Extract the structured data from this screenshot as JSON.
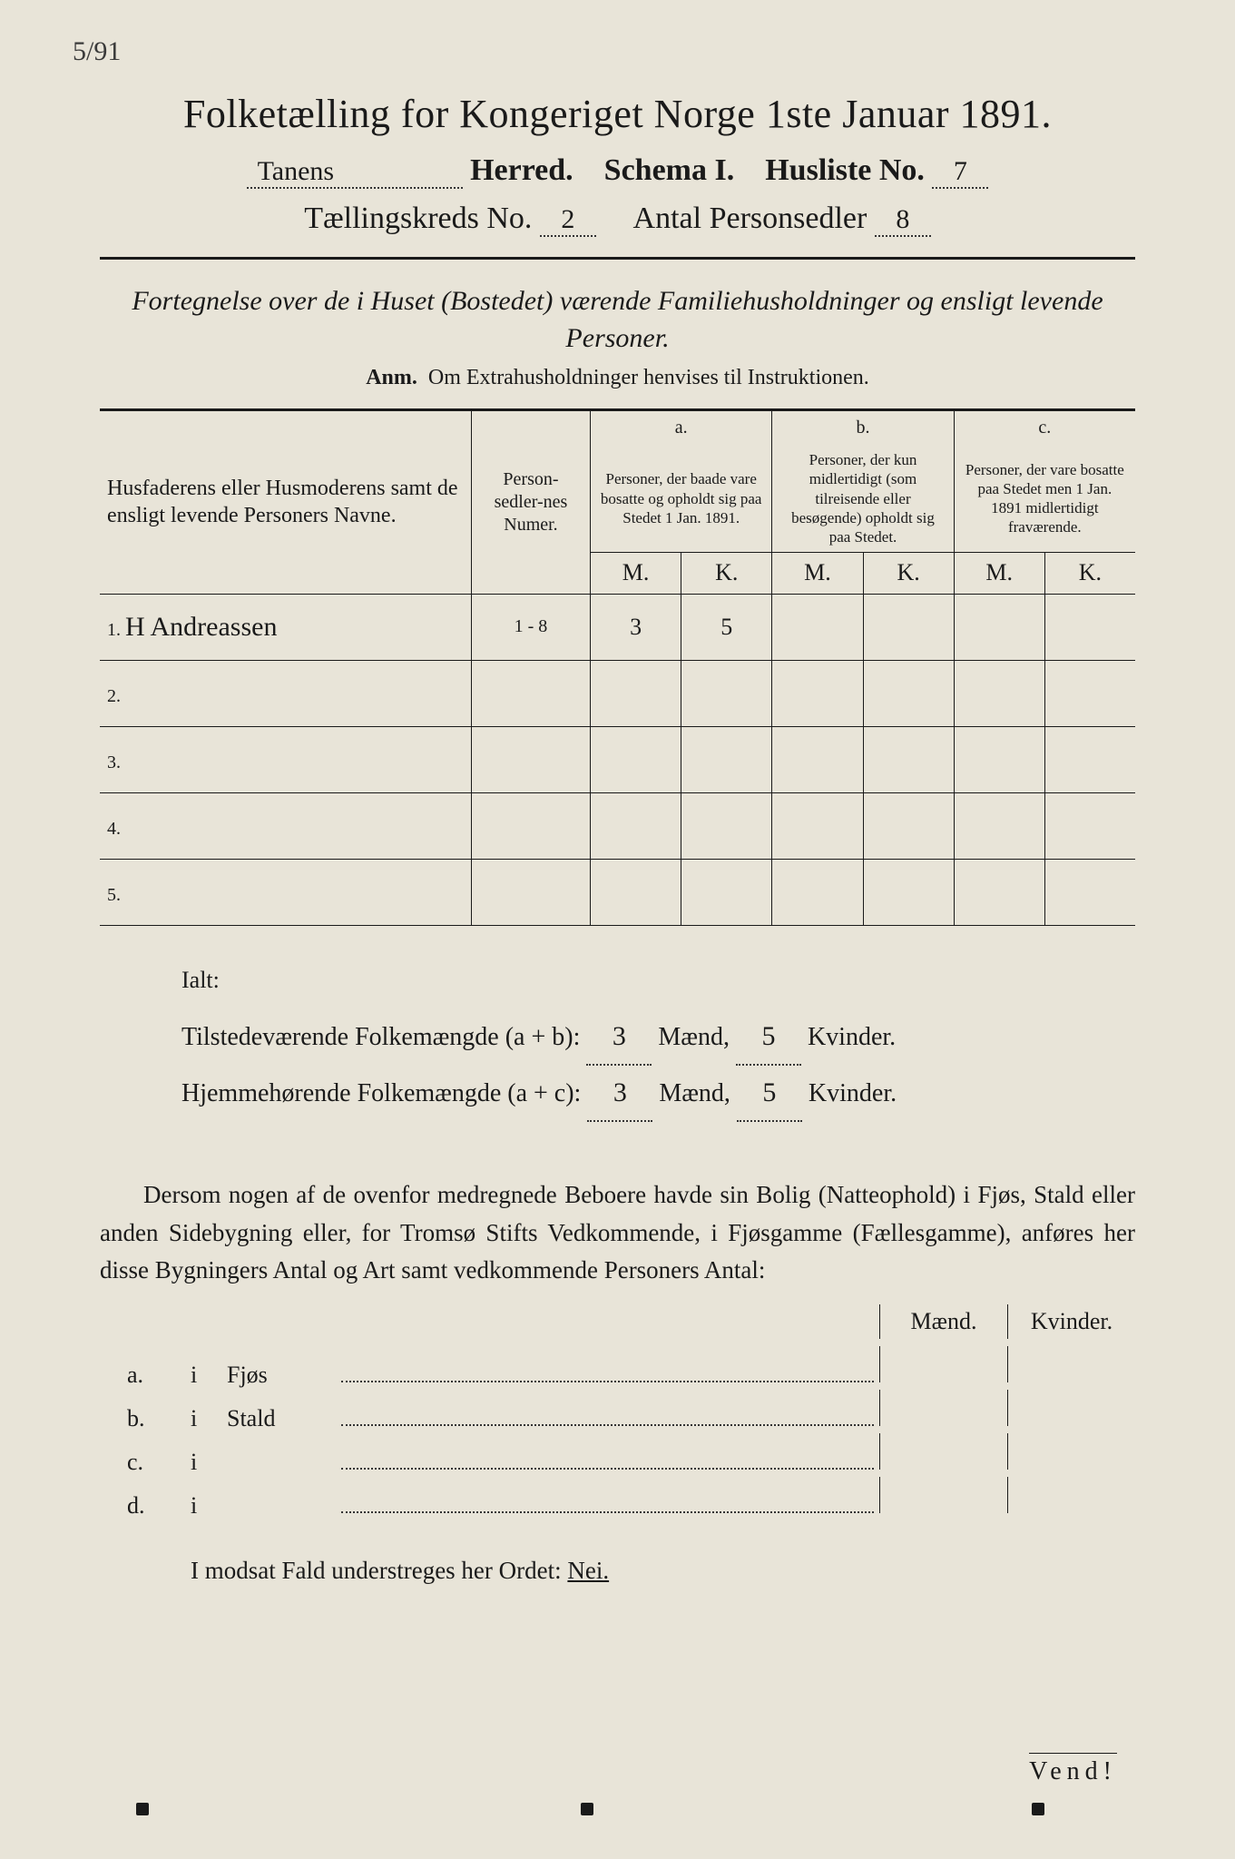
{
  "corner_mark": "5/91",
  "title": "Folketælling for Kongeriget Norge 1ste Januar 1891.",
  "header": {
    "herred_value": "Tanens",
    "herred_label": "Herred.",
    "schema_label": "Schema I.",
    "husliste_label": "Husliste No.",
    "husliste_value": "7",
    "kreds_label": "Tællingskreds No.",
    "kreds_value": "2",
    "antal_label": "Antal Personsedler",
    "antal_value": "8"
  },
  "subtitle": "Fortegnelse over de i Huset (Bostedet) værende Familiehusholdninger og ensligt levende Personer.",
  "anm_label": "Anm.",
  "anm_text": "Om Extrahusholdninger henvises til Instruktionen.",
  "table": {
    "col_name": "Husfaderens eller Husmoderens samt de ensligt levende Personers Navne.",
    "col_num": "Person-sedler-nes Numer.",
    "col_a_top": "a.",
    "col_a": "Personer, der baade vare bosatte og opholdt sig paa Stedet 1 Jan. 1891.",
    "col_b_top": "b.",
    "col_b": "Personer, der kun midlertidigt (som tilreisende eller besøgende) opholdt sig paa Stedet.",
    "col_c_top": "c.",
    "col_c": "Personer, der vare bosatte paa Stedet men 1 Jan. 1891 midlertidigt fraværende.",
    "m": "M.",
    "k": "K.",
    "rows": [
      {
        "n": "1.",
        "name": "H Andreassen",
        "num": "1 - 8",
        "am": "3",
        "ak": "5",
        "bm": "",
        "bk": "",
        "cm": "",
        "ck": ""
      },
      {
        "n": "2.",
        "name": "",
        "num": "",
        "am": "",
        "ak": "",
        "bm": "",
        "bk": "",
        "cm": "",
        "ck": ""
      },
      {
        "n": "3.",
        "name": "",
        "num": "",
        "am": "",
        "ak": "",
        "bm": "",
        "bk": "",
        "cm": "",
        "ck": ""
      },
      {
        "n": "4.",
        "name": "",
        "num": "",
        "am": "",
        "ak": "",
        "bm": "",
        "bk": "",
        "cm": "",
        "ck": ""
      },
      {
        "n": "5.",
        "name": "",
        "num": "",
        "am": "",
        "ak": "",
        "bm": "",
        "bk": "",
        "cm": "",
        "ck": ""
      }
    ]
  },
  "totals": {
    "ialt": "Ialt:",
    "line1_label": "Tilstedeværende Folkemængde (a + b):",
    "line2_label": "Hjemmehørende Folkemængde (a + c):",
    "maend": "Mænd,",
    "kvinder": "Kvinder.",
    "l1m": "3",
    "l1k": "5",
    "l2m": "3",
    "l2k": "5"
  },
  "paragraph": "Dersom nogen af de ovenfor medregnede Beboere havde sin Bolig (Natteophold) i Fjøs, Stald eller anden Sidebygning eller, for Tromsø Stifts Vedkommende, i Fjøsgamme (Fællesgamme), anføres her disse Bygningers Antal og Art samt vedkommende Personers Antal:",
  "mk": {
    "m": "Mænd.",
    "k": "Kvinder."
  },
  "buildings": [
    {
      "lbl": "a.",
      "i": "i",
      "name": "Fjøs"
    },
    {
      "lbl": "b.",
      "i": "i",
      "name": "Stald"
    },
    {
      "lbl": "c.",
      "i": "i",
      "name": ""
    },
    {
      "lbl": "d.",
      "i": "i",
      "name": ""
    }
  ],
  "nei_line_pre": "I modsat Fald understreges her Ordet: ",
  "nei": "Nei.",
  "vend": "Vend!"
}
